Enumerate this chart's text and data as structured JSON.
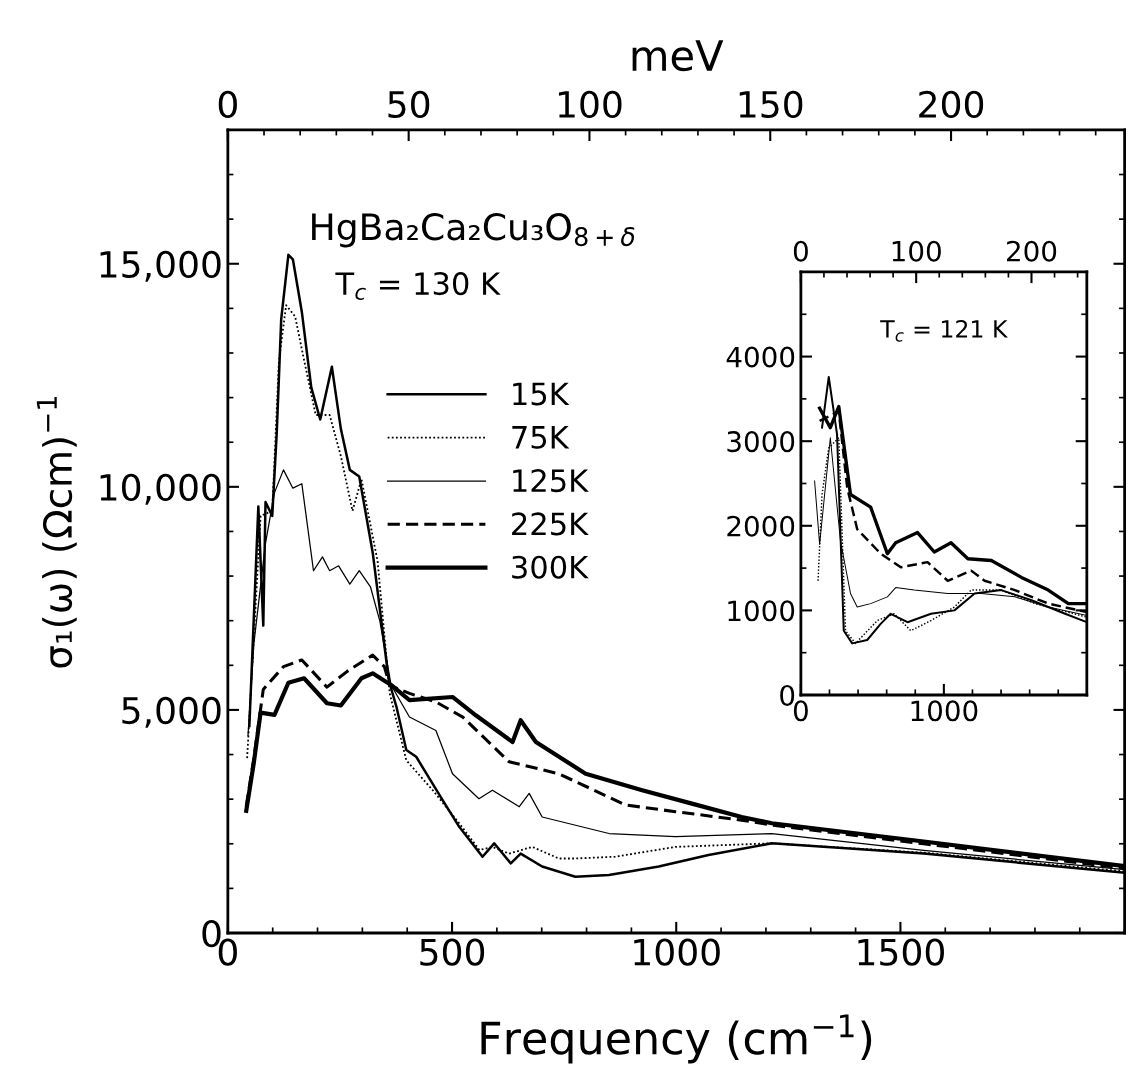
{
  "chart_data": [
    {
      "type": "line",
      "xlabel": "Frequency (cm$^{−1}$)",
      "ylabel": "σ₁(ω) (Ωcm)$^{−1}$",
      "x2label": "meV",
      "annotations": [
        "HgBa₂Ca₂Cu₃O$_{8+δ}$",
        "T$_{c}$ = 130 K"
      ],
      "xlim": [
        0,
        2000
      ],
      "xticks": [
        0,
        500,
        1000,
        1500
      ],
      "x2lim": [
        0,
        248
      ],
      "x2ticks": [
        0,
        50,
        100,
        150,
        200
      ],
      "ylim": [
        0,
        18000
      ],
      "yticks": [
        0,
        {
          "value": 5000,
          "label": "5,000"
        },
        {
          "value": 10000,
          "label": "10,000"
        },
        {
          "value": 15000,
          "label": "15,000"
        }
      ],
      "grid": false,
      "legend": "top center",
      "marker": "none",
      "series": [
        {
          "name": "15K",
          "color": "#000000",
          "line_style": "solid",
          "x": [
            48,
            68,
            79,
            84,
            99,
            109,
            119,
            135,
            145,
            165,
            186,
            206,
            232,
            252,
            272,
            293,
            323,
            359,
            376,
            398,
            420,
            479,
            516,
            568,
            594,
            631,
            653,
            701,
            775,
            850,
            961,
            1072,
            1213,
            1552,
            2000
          ],
          "values": [
            4640,
            9560,
            6890,
            9660,
            9350,
            11200,
            13760,
            15200,
            15100,
            13920,
            12230,
            11510,
            12690,
            11300,
            10380,
            10230,
            8530,
            5660,
            5070,
            4100,
            3950,
            2980,
            2380,
            1710,
            2010,
            1560,
            1780,
            1490,
            1260,
            1300,
            1490,
            1750,
            2010,
            1780,
            1350
          ]
        },
        {
          "name": "75K",
          "color": "#000000",
          "line_style": "dotted",
          "x": [
            43,
            73,
            99,
            114,
            130,
            150,
            170,
            196,
            227,
            252,
            278,
            298,
            334,
            361,
            398,
            457,
            516,
            561,
            590,
            627,
            679,
            738,
            775,
            864,
            998,
            1213,
            1552,
            2000
          ],
          "values": [
            3920,
            9350,
            9460,
            12840,
            14070,
            13820,
            12840,
            11610,
            11610,
            10690,
            9460,
            10170,
            8330,
            5370,
            3870,
            3200,
            2460,
            1860,
            1930,
            1780,
            1930,
            1670,
            1670,
            1710,
            1930,
            2010,
            1800,
            1380
          ]
        },
        {
          "name": "125K",
          "color": "#000000",
          "line_style": "solid",
          "x": [
            45,
            58,
            84,
            104,
            124,
            145,
            165,
            191,
            211,
            227,
            247,
            272,
            293,
            318,
            339,
            364,
            405,
            464,
            501,
            560,
            590,
            650,
            672,
            701,
            850,
            998,
            1213,
            1552,
            2000
          ],
          "values": [
            4430,
            6480,
            8740,
            9870,
            10380,
            9970,
            10070,
            8120,
            8430,
            8120,
            8230,
            7820,
            8120,
            7760,
            6990,
            5560,
            4840,
            4540,
            3570,
            3010,
            3200,
            2830,
            3130,
            2600,
            2230,
            2160,
            2230,
            1850,
            1420
          ]
        },
        {
          "name": "225K",
          "color": "#000000",
          "line_style": "dashed",
          "x": [
            41,
            58,
            79,
            124,
            165,
            221,
            267,
            323,
            349,
            361,
            405,
            464,
            524,
            627,
            738,
            887,
            998,
            1146,
            1213,
            1552,
            2000
          ],
          "values": [
            2840,
            3920,
            5460,
            5970,
            6120,
            5510,
            5870,
            6230,
            5970,
            5550,
            5370,
            5180,
            4840,
            3840,
            3570,
            2870,
            2720,
            2530,
            2420,
            2000,
            1450
          ]
        },
        {
          "name": "300K",
          "color": "#000000",
          "line_style": "solid",
          "x": [
            41,
            58,
            73,
            104,
            135,
            170,
            221,
            252,
            298,
            323,
            364,
            405,
            501,
            553,
            635,
            653,
            687,
            798,
            924,
            1035,
            1146,
            1213,
            1552,
            2000
          ],
          "values": [
            2740,
            3820,
            4940,
            4890,
            5610,
            5710,
            5150,
            5100,
            5710,
            5820,
            5560,
            5220,
            5290,
            4880,
            4280,
            4770,
            4280,
            3570,
            3200,
            2900,
            2600,
            2460,
            2050,
            1500
          ]
        }
      ]
    },
    {
      "type": "line",
      "annotations": [
        "T$_{c}$ = 121 K"
      ],
      "xlim": [
        0,
        2000
      ],
      "xticks": [
        0,
        1000
      ],
      "x2lim": [
        0,
        248
      ],
      "x2ticks": [
        0,
        100,
        200
      ],
      "ylim": [
        0,
        5000
      ],
      "yticks": [
        0,
        1000,
        2000,
        3000,
        4000
      ],
      "grid": false,
      "legend": false,
      "marker": "none",
      "series": [
        {
          "color": "#000000",
          "line_style": "solid",
          "x": [
            148,
            195,
            253,
            300,
            359,
            464,
            558,
            628,
            746,
            910,
            1074,
            1215,
            1402,
            1613,
            1848,
            2000
          ],
          "values": [
            3160,
            3760,
            3080,
            760,
            610,
            650,
            840,
            960,
            860,
            960,
            1000,
            1200,
            1240,
            1120,
            960,
            860
          ]
        },
        {
          "color": "#000000",
          "line_style": "dotted",
          "x": [
            120,
            148,
            195,
            265,
            312,
            382,
            535,
            652,
            769,
            910,
            1074,
            1191,
            1402,
            1637,
            2000
          ],
          "values": [
            1350,
            2370,
            2920,
            3040,
            760,
            610,
            880,
            960,
            760,
            880,
            1040,
            1240,
            1240,
            1080,
            920
          ]
        },
        {
          "color": "#000000",
          "line_style": "solid",
          "x": [
            96,
            131,
            206,
            277,
            347,
            394,
            488,
            605,
            663,
            793,
            1027,
            1261,
            1496,
            1730,
            2000
          ],
          "values": [
            2530,
            1780,
            3040,
            1820,
            1200,
            1040,
            1080,
            1160,
            1270,
            1240,
            1200,
            1200,
            1160,
            1040,
            940
          ]
        },
        {
          "color": "#000000",
          "line_style": "dashed",
          "x": [
            131,
            265,
            324,
            394,
            558,
            699,
            886,
            1027,
            1191,
            1285,
            1496,
            1730,
            2000
          ],
          "values": [
            3240,
            3350,
            2450,
            1960,
            1670,
            1510,
            1570,
            1350,
            1470,
            1350,
            1240,
            1080,
            980
          ]
        },
        {
          "color": "#000000",
          "line_style": "solid",
          "x": [
            131,
            206,
            265,
            347,
            488,
            605,
            663,
            816,
            933,
            1050,
            1168,
            1332,
            1543,
            1730,
            1871,
            2000
          ],
          "values": [
            3390,
            3160,
            3410,
            2370,
            2220,
            1670,
            1800,
            1920,
            1690,
            1800,
            1610,
            1590,
            1390,
            1240,
            1080,
            1080
          ]
        }
      ]
    }
  ]
}
